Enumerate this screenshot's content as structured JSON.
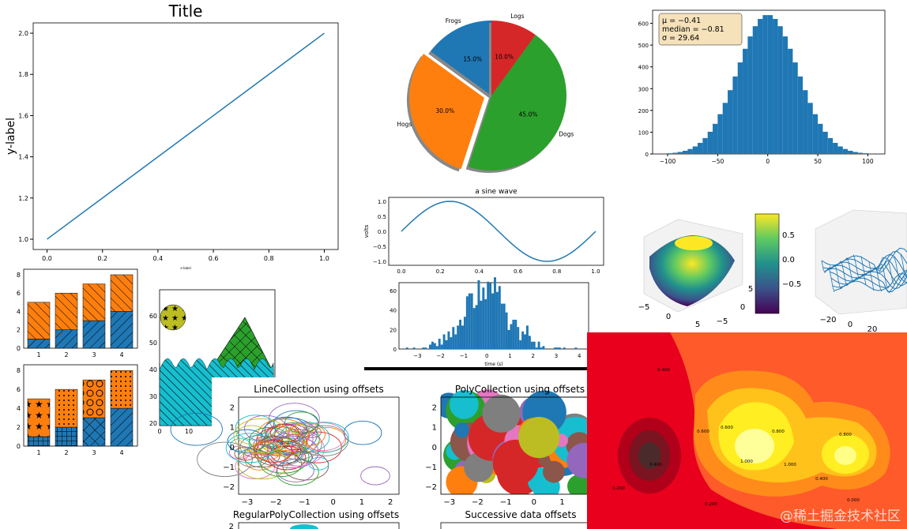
{
  "colors": {
    "blue": "#1f77b4",
    "orange": "#ff7f0e",
    "green": "#2ca02c",
    "red": "#d62728",
    "purple": "#9467bd",
    "brown": "#8c564b",
    "pink": "#e377c2",
    "gray": "#7f7f7f",
    "olive": "#bcbd22",
    "cyan": "#17becf"
  },
  "watermark": "@稀土掘金技术社区",
  "chart_data": [
    {
      "id": "line",
      "type": "line",
      "title": "Title",
      "xlabel": "x-label",
      "ylabel": "y-label",
      "x": [
        0,
        1
      ],
      "y": [
        1,
        2
      ],
      "xlim": [
        -0.05,
        1.05
      ],
      "ylim": [
        0.95,
        2.05
      ],
      "xticks": [
        "0.0",
        "0.2",
        "0.4",
        "0.6",
        "0.8",
        "1.0"
      ],
      "yticks": [
        "1.0",
        "1.2",
        "1.4",
        "1.6",
        "1.8",
        "2.0"
      ]
    },
    {
      "id": "pie",
      "type": "pie",
      "labels": [
        "Frogs",
        "Hogs",
        "Dogs",
        "Logs"
      ],
      "values": [
        15,
        30,
        45,
        10
      ],
      "pct_labels": [
        "15.0%",
        "30.0%",
        "45.0%",
        "10.0%"
      ],
      "explode": [
        0,
        0.1,
        0,
        0
      ],
      "colors": [
        "#1f77b4",
        "#ff7f0e",
        "#2ca02c",
        "#d62728"
      ]
    },
    {
      "id": "hist-stats",
      "type": "bar",
      "annotation": [
        "μ = −0.41",
        "median = −0.81",
        "σ = 29.64"
      ],
      "xticks": [
        "−100",
        "−50",
        "0",
        "50",
        "100"
      ],
      "yticks": [
        "0",
        "100",
        "200",
        "300",
        "400",
        "500",
        "600"
      ]
    },
    {
      "id": "sine",
      "type": "line",
      "title": "a sine wave",
      "ylabel": "volts",
      "xticks": [
        "0.0",
        "0.2",
        "0.4",
        "0.6",
        "0.8",
        "1.0"
      ],
      "yticks": [
        "−1.0",
        "−0.5",
        "0.0",
        "0.5",
        "1.0"
      ]
    },
    {
      "id": "hist-time",
      "type": "bar",
      "xlabel": "time (s)",
      "xticks": [
        "−3",
        "−2",
        "−1",
        "0",
        "1",
        "2",
        "3",
        "4"
      ],
      "yticks": [
        "0",
        "20",
        "40",
        "60"
      ]
    },
    {
      "id": "surface",
      "type": "heatmap",
      "colorbar_ticks": [
        "0.5",
        "0.0",
        "−0.5"
      ],
      "xticks": [
        "−5",
        "0",
        "5"
      ],
      "yticks": [
        "5",
        "0",
        "−5"
      ]
    },
    {
      "id": "wireframe",
      "type": "line",
      "xticks": [
        "−20",
        "0",
        "20"
      ]
    },
    {
      "id": "stacked-bars",
      "type": "bar",
      "categories": [
        "1",
        "2",
        "3",
        "4"
      ],
      "series": [
        {
          "values": [
            1,
            2,
            3,
            4
          ]
        },
        {
          "values": [
            4,
            4,
            4,
            4
          ]
        }
      ],
      "yticks": [
        "0",
        "2",
        "4",
        "6",
        "8"
      ]
    },
    {
      "id": "stacked-bars-hatched",
      "type": "bar",
      "categories": [
        "1",
        "2",
        "3",
        "4"
      ],
      "series": [
        {
          "values": [
            1,
            2,
            3,
            4
          ]
        },
        {
          "values": [
            4,
            4,
            4,
            4
          ]
        }
      ],
      "yticks": [
        "0",
        "2",
        "4",
        "6",
        "8"
      ]
    },
    {
      "id": "patches",
      "type": "area",
      "xticks": [
        "0",
        "10"
      ],
      "yticks": [
        "20",
        "30",
        "40",
        "50",
        "60"
      ]
    },
    {
      "id": "line-collection",
      "type": "line",
      "title": "LineCollection using offsets",
      "xticks": [
        "−3",
        "−2",
        "−1",
        "0",
        "1",
        "2"
      ],
      "yticks": [
        "−2",
        "−1",
        "0",
        "1",
        "2"
      ]
    },
    {
      "id": "poly-collection",
      "type": "scatter",
      "title": "PolyCollection using offsets",
      "xticks": [
        "−3",
        "−2",
        "−1",
        "0",
        "1",
        "2"
      ],
      "yticks": [
        "−2",
        "−1",
        "0",
        "1",
        "2"
      ]
    },
    {
      "id": "regpoly-collection",
      "type": "scatter",
      "title": "RegularPolyCollection using offsets",
      "yticks": [
        "2"
      ]
    },
    {
      "id": "successive",
      "type": "line",
      "title": "Successive data offsets"
    },
    {
      "id": "contour",
      "type": "heatmap",
      "levels": [
        "0.400",
        "0.600",
        "0.800",
        "1.000",
        "1.000",
        "0.600",
        "0.800",
        "0.400",
        "0.200",
        "0.200",
        "0.000",
        "0.400"
      ]
    }
  ]
}
